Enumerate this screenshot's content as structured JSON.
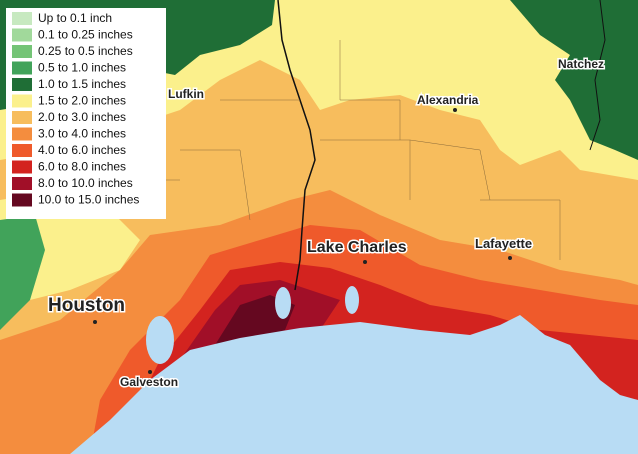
{
  "legend": {
    "items": [
      {
        "label": "Up to 0.1 inch",
        "color": "#c7e9c0"
      },
      {
        "label": "0.1 to 0.25 inches",
        "color": "#a1d99b"
      },
      {
        "label": "0.25 to 0.5 inches",
        "color": "#74c476"
      },
      {
        "label": "0.5 to 1.0 inches",
        "color": "#41a35a"
      },
      {
        "label": "1.0 to 1.5 inches",
        "color": "#1f6e36"
      },
      {
        "label": "1.5 to 2.0 inches",
        "color": "#fbf08c"
      },
      {
        "label": "2.0 to 3.0 inches",
        "color": "#f7bd5d"
      },
      {
        "label": "3.0 to 4.0 inches",
        "color": "#f48d3e"
      },
      {
        "label": "4.0 to 6.0 inches",
        "color": "#ef5a2b"
      },
      {
        "label": "6.0 to 8.0 inches",
        "color": "#d3231f"
      },
      {
        "label": "8.0 to 10.0 inches",
        "color": "#a10f28"
      },
      {
        "label": "10.0 to 15.0 inches",
        "color": "#650820"
      }
    ]
  },
  "cities": [
    "Lufkin",
    "Natchez",
    "Alexandria",
    "Lake Charles",
    "Lafayette",
    "Houston",
    "Galveston"
  ]
}
